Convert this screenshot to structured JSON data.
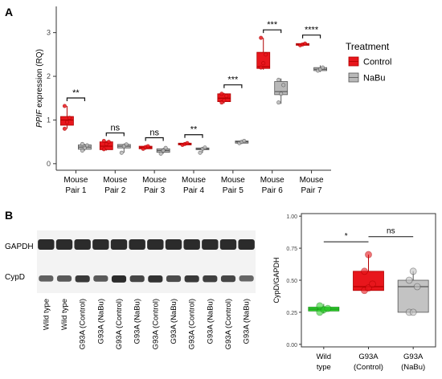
{
  "panels": {
    "a": "A",
    "b": "B"
  },
  "chart_data": [
    {
      "type": "box",
      "panel": "A",
      "ylabel_italic": "PPIF",
      "ylabel_rest": " expression (RQ)",
      "ylim": [
        -0.15,
        3.6
      ],
      "yticks": [
        0,
        1,
        2,
        3
      ],
      "grid": false,
      "legend": {
        "title": "Treatment",
        "placement": "right",
        "items": [
          "Control",
          "NaBu"
        ]
      },
      "categories": [
        [
          "Mouse",
          "Pair 1"
        ],
        [
          "Mouse",
          "Pair 2"
        ],
        [
          "Mouse",
          "Pair 3"
        ],
        [
          "Mouse",
          "Pair 4"
        ],
        [
          "Mouse",
          "Pair 5"
        ],
        [
          "Mouse",
          "Pair 6"
        ],
        [
          "Mouse",
          "Pair 7"
        ]
      ],
      "series": [
        {
          "name": "Control",
          "color": "#e8161c",
          "boxes": [
            {
              "min": 0.8,
              "q1": 0.88,
              "median": 1.0,
              "q3": 1.08,
              "max": 1.32,
              "points": [
                0.8,
                0.95,
                1.05,
                1.32
              ]
            },
            {
              "min": 0.3,
              "q1": 0.32,
              "median": 0.4,
              "q3": 0.5,
              "max": 0.52,
              "points": [
                0.33,
                0.45,
                0.5,
                0.52
              ]
            },
            {
              "min": 0.32,
              "q1": 0.34,
              "median": 0.37,
              "q3": 0.4,
              "max": 0.41,
              "points": [
                0.34,
                0.38,
                0.4
              ]
            },
            {
              "min": 0.42,
              "q1": 0.43,
              "median": 0.45,
              "q3": 0.47,
              "max": 0.48,
              "points": [
                0.43,
                0.45,
                0.47
              ]
            },
            {
              "min": 1.38,
              "q1": 1.42,
              "median": 1.5,
              "q3": 1.6,
              "max": 1.62,
              "points": [
                1.4,
                1.45,
                1.55,
                1.6
              ]
            },
            {
              "min": 2.15,
              "q1": 2.18,
              "median": 2.22,
              "q3": 2.55,
              "max": 2.88,
              "points": [
                2.2,
                2.3,
                2.5,
                2.88
              ]
            },
            {
              "min": 2.7,
              "q1": 2.71,
              "median": 2.73,
              "q3": 2.75,
              "max": 2.76,
              "points": [
                2.71,
                2.73,
                2.75
              ]
            }
          ]
        },
        {
          "name": "NaBu",
          "color": "#b9b9b9",
          "boxes": [
            {
              "min": 0.3,
              "q1": 0.33,
              "median": 0.38,
              "q3": 0.43,
              "max": 0.45,
              "points": [
                0.3,
                0.36,
                0.42,
                0.45
              ]
            },
            {
              "min": 0.25,
              "q1": 0.36,
              "median": 0.4,
              "q3": 0.44,
              "max": 0.46,
              "points": [
                0.25,
                0.4,
                0.44
              ]
            },
            {
              "min": 0.23,
              "q1": 0.26,
              "median": 0.3,
              "q3": 0.34,
              "max": 0.36,
              "points": [
                0.23,
                0.3,
                0.36
              ]
            },
            {
              "min": 0.25,
              "q1": 0.32,
              "median": 0.34,
              "q3": 0.36,
              "max": 0.38,
              "points": [
                0.25,
                0.34,
                0.37
              ]
            },
            {
              "min": 0.45,
              "q1": 0.47,
              "median": 0.5,
              "q3": 0.52,
              "max": 0.53,
              "points": [
                0.47,
                0.5,
                0.52
              ]
            },
            {
              "min": 1.37,
              "q1": 1.58,
              "median": 1.65,
              "q3": 1.88,
              "max": 1.95,
              "points": [
                1.4,
                1.6,
                1.8,
                1.92
              ]
            },
            {
              "min": 2.1,
              "q1": 2.13,
              "median": 2.16,
              "q3": 2.2,
              "max": 2.25,
              "points": [
                2.13,
                2.16,
                2.2
              ]
            }
          ]
        }
      ],
      "significance": [
        "**",
        "ns",
        "ns",
        "**",
        "***",
        "***",
        "****"
      ]
    },
    {
      "type": "box",
      "panel": "B",
      "ylabel": "CypD/GAPDH",
      "ylim": [
        -0.02,
        1.02
      ],
      "yticks": [
        "0.00",
        "0.25",
        "0.50",
        "0.75",
        "1.00"
      ],
      "grid": false,
      "categories": [
        [
          "Wild",
          "type"
        ],
        [
          "G93A",
          "(Control)"
        ],
        [
          "G93A",
          "(NaBu)"
        ]
      ],
      "boxes": [
        {
          "color": "#31d12e",
          "min": 0.24,
          "q1": 0.26,
          "median": 0.275,
          "q3": 0.29,
          "max": 0.315,
          "points": [
            0.25,
            0.27,
            0.28,
            0.3
          ]
        },
        {
          "color": "#e8161c",
          "min": 0.42,
          "q1": 0.42,
          "median": 0.45,
          "q3": 0.57,
          "max": 0.7,
          "points": [
            0.42,
            0.44,
            0.47,
            0.57,
            0.7
          ]
        },
        {
          "color": "#c3c3c3",
          "min": 0.25,
          "q1": 0.25,
          "median": 0.45,
          "q3": 0.5,
          "max": 0.57,
          "points": [
            0.25,
            0.25,
            0.45,
            0.5,
            0.57
          ]
        }
      ],
      "significance": [
        {
          "pair": [
            0,
            1
          ],
          "label": "*"
        },
        {
          "pair": [
            1,
            2
          ],
          "label": "ns"
        }
      ]
    }
  ],
  "blot": {
    "rows": [
      "GAPDH",
      "CypD"
    ],
    "lanes": [
      "Wild type",
      "Wild type",
      "G93A (Control)",
      "G93A (NaBu)",
      "G93A (Control)",
      "G93A (NaBu)",
      "G93A (Control)",
      "G93A (NaBu)",
      "G93A (Control)",
      "G93A (NaBu)",
      "G93A (Control)",
      "G93A (NaBu)"
    ],
    "cypd_intensity": [
      0.55,
      0.6,
      0.85,
      0.6,
      0.95,
      0.75,
      0.9,
      0.7,
      0.85,
      0.8,
      0.75,
      0.5
    ]
  }
}
